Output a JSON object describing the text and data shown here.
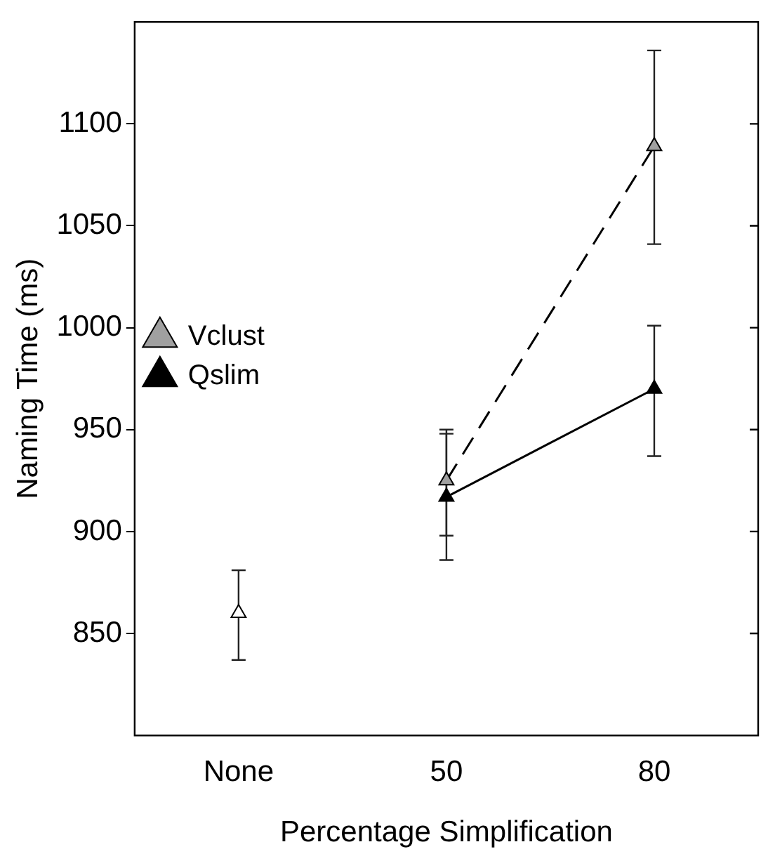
{
  "chart_data": {
    "type": "line",
    "xlabel": "Percentage Simplification",
    "ylabel": "Naming Time (ms)",
    "categories": [
      "None",
      "50",
      "80"
    ],
    "series": [
      {
        "color": "#ffffff",
        "values": [
          860,
          null,
          null
        ],
        "errors": [
          [
            837,
            881
          ],
          null,
          null
        ]
      },
      {
        "name": "Vclust",
        "color": "#a0a0a0",
        "line_style": "dashed",
        "values": [
          null,
          925,
          1089
        ],
        "errors": [
          null,
          [
            898,
            950
          ],
          [
            1041,
            1136
          ]
        ]
      },
      {
        "name": "Qslim",
        "color": "#000000",
        "line_style": "solid",
        "values": [
          null,
          917,
          970
        ],
        "errors": [
          null,
          [
            886,
            948
          ],
          [
            937,
            1001
          ]
        ]
      }
    ],
    "ylim": [
      800,
      1150
    ],
    "yticks": [
      850,
      900,
      950,
      1000,
      1050,
      1100
    ],
    "marker": "triangle",
    "grid": false,
    "legend": "top"
  }
}
